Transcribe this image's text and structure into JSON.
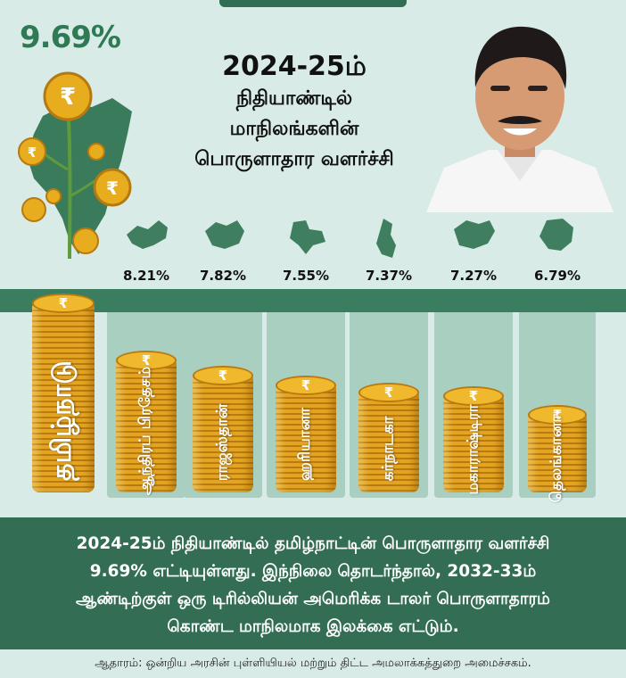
{
  "header": {
    "tn_growth": "9.69%",
    "title_year": "2024-25ம்",
    "title_line2": "நிதியாண்டில்",
    "title_line3": "மாநிலங்களின்",
    "title_line4": "பொருளாதார வளர்ச்சி"
  },
  "chart_data": {
    "type": "bar",
    "categories": [
      "தமிழ்நாடு",
      "ஆந்திரப் பிரதேசம்",
      "ராஜஸ்தான்",
      "ஹரியானா",
      "கர்நாடகா",
      "மகாராஷ்டிரா",
      "தெலங்கானா"
    ],
    "values": [
      9.69,
      8.21,
      7.82,
      7.55,
      7.37,
      7.27,
      6.79
    ],
    "value_labels": [
      "9.69%",
      "8.21%",
      "7.82%",
      "7.55%",
      "7.37%",
      "7.27%",
      "6.79%"
    ],
    "unit": "%",
    "colors": {
      "coin": "#e3a521",
      "coin_dark": "#b97a10",
      "column_bg": "#a9cfc1",
      "band": "#3b7d5f",
      "accent": "#2f7a55"
    }
  },
  "footer": {
    "line1": "2024-25ம் நிதியாண்டில் தமிழ்நாட்டின் பொருளாதார வளர்ச்சி",
    "line2": "9.69% எட்டியுள்ளது. இந்நிலை தொடர்ந்தால், 2032-33ம்",
    "line3": "ஆண்டிற்குள் ஒரு டிரில்லியன் அமெரிக்க டாலர் பொருளாதாரம்",
    "line4": "கொண்ட மாநிலமாக இலக்கை எட்டும்."
  },
  "source": "ஆதாரம்: ஒன்றிய அரசின் புள்ளியியல் மற்றும் திட்ட அமலாக்கத்துறை அமைச்சகம்.",
  "icons": [
    "tamilnadu-map-icon",
    "rupee-coin-icon",
    "state-map-icon",
    "portrait-icon"
  ]
}
